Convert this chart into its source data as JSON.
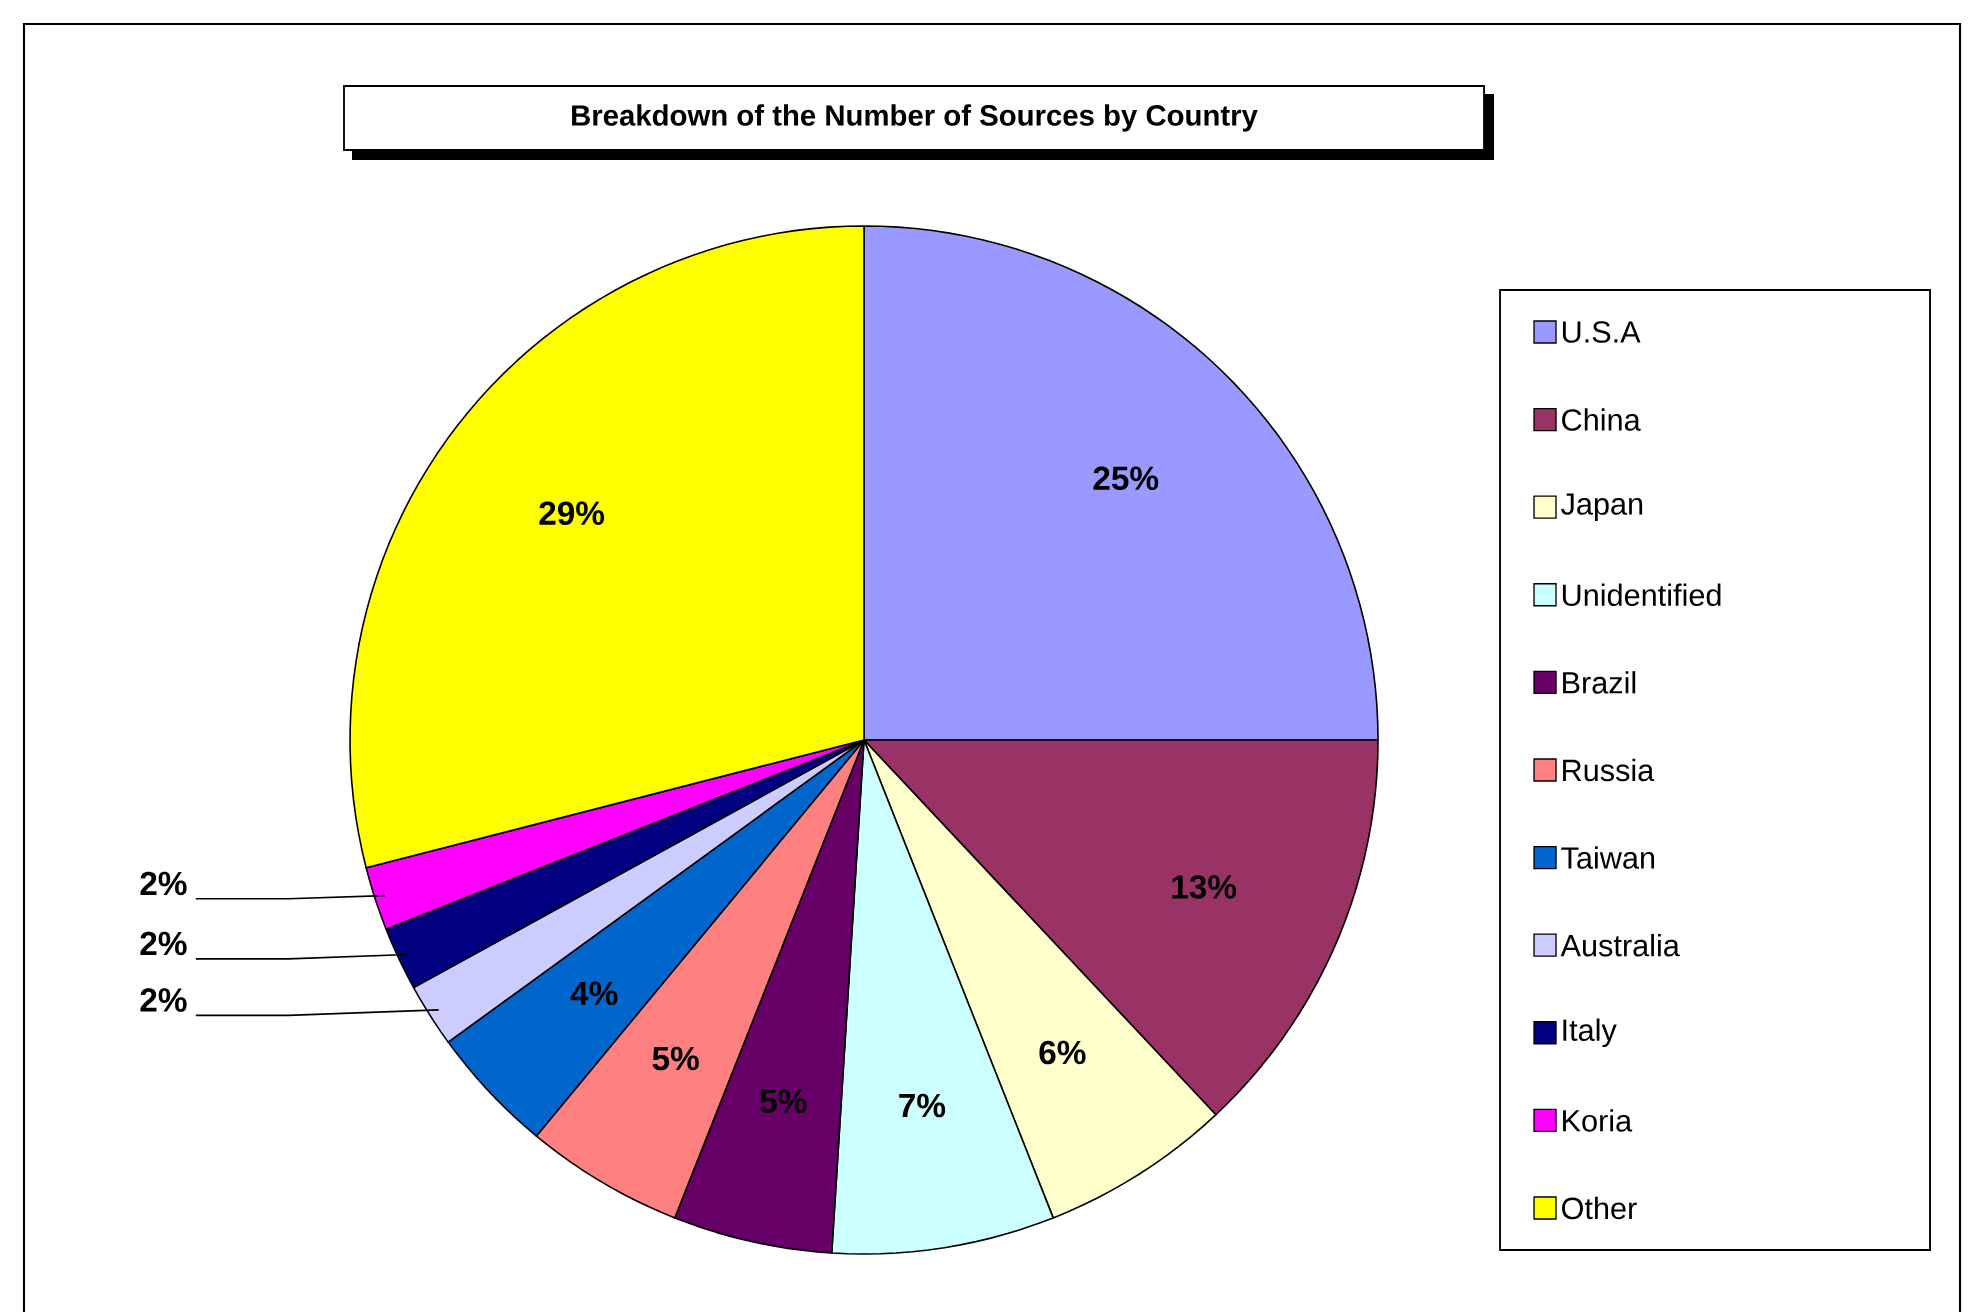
{
  "chart_data": {
    "type": "pie",
    "title": "Breakdown of the Number of Sources by Country",
    "categories": [
      "U.S.A",
      "China",
      "Japan",
      "Unidentified",
      "Brazil",
      "Russia",
      "Taiwan",
      "Australia",
      "Italy",
      "Koria",
      "Other"
    ],
    "values": [
      25,
      13,
      6,
      7,
      5,
      5,
      4,
      2,
      2,
      2,
      29
    ],
    "colors": [
      "#9999ff",
      "#993366",
      "#ffffcc",
      "#ccffff",
      "#660066",
      "#ff8080",
      "#0066cc",
      "#ccccff",
      "#000080",
      "#ff00ff",
      "#ffff00"
    ],
    "value_labels": [
      "25%",
      "13%",
      "6%",
      "7%",
      "5%",
      "5%",
      "4%",
      "2%",
      "2%",
      "2%",
      "29%"
    ],
    "legend": "right"
  }
}
